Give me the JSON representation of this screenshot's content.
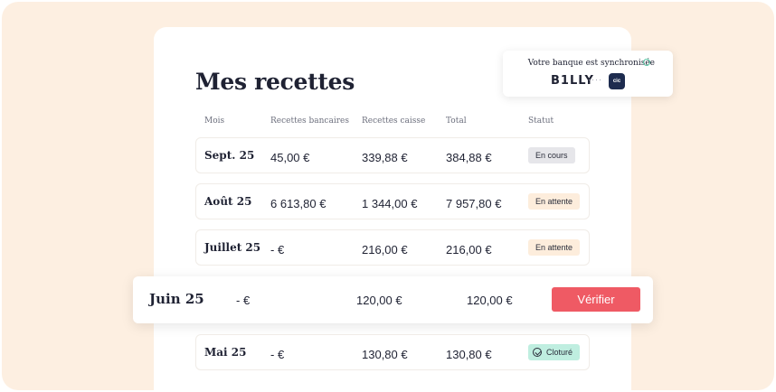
{
  "page": {
    "title": "Mes recettes"
  },
  "sync": {
    "text": "Votre banque est synchronisée",
    "brand": "B1LLY",
    "dots": "····",
    "bank_badge": "cic"
  },
  "columns": {
    "mois": "Mois",
    "bancaires": "Recettes bancaires",
    "caisse": "Recettes caisse",
    "total": "Total",
    "statut": "Statut"
  },
  "rows": [
    {
      "month": "Sept. 25",
      "bancaires": "45,00 €",
      "caisse": "339,88 €",
      "total": "384,88 €",
      "status": "En cours"
    },
    {
      "month": "Août 25",
      "bancaires": "6 613,80 €",
      "caisse": "1 344,00 €",
      "total": "7 957,80 €",
      "status": "En attente"
    },
    {
      "month": "Juillet  25",
      "bancaires": "- €",
      "caisse": "216,00 €",
      "total": "216,00 €",
      "status": "En attente"
    },
    {
      "month": "Juin 25",
      "bancaires": "- €",
      "caisse": "120,00 €",
      "total": "120,00 €",
      "action": "Vérifier"
    },
    {
      "month": "Mai 25",
      "bancaires": "- €",
      "caisse": "130,80 €",
      "total": "130,80 €",
      "status": "Cloturé"
    }
  ],
  "colors": {
    "background": "#fdefe1",
    "accent": "#ef5a64",
    "badge_done": "#bfeee0",
    "badge_pending": "#fdeddc",
    "badge_current": "#e6e6ea"
  },
  "icons": {
    "sync_check": "check-circle-icon",
    "cloture_check": "check-circle-icon"
  }
}
